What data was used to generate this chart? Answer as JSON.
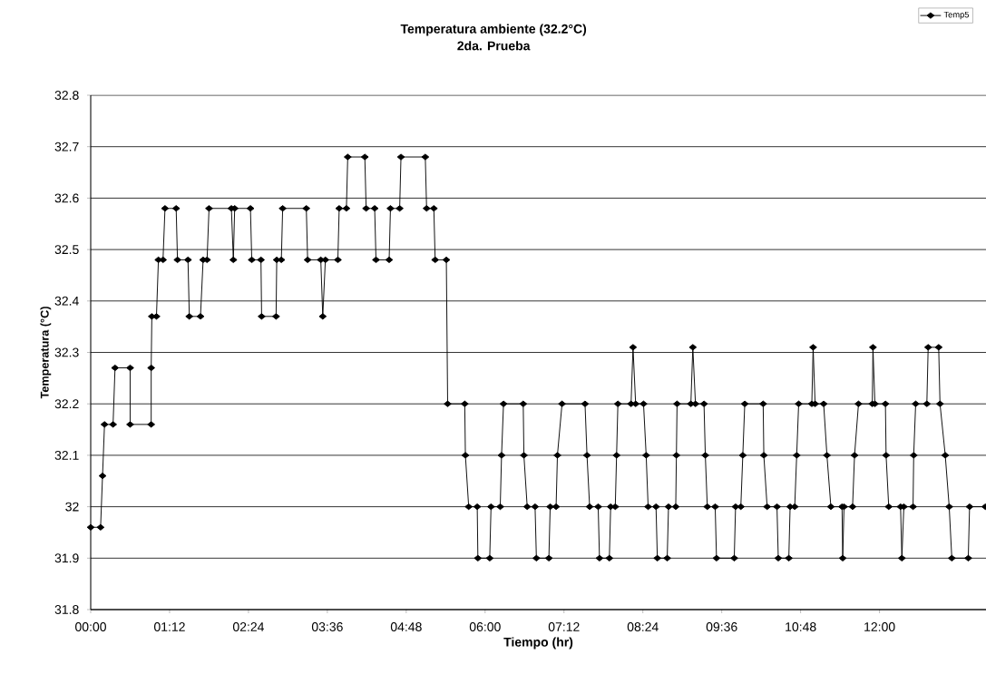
{
  "chart_data": {
    "type": "line",
    "title": "Temperatura ambiente (32.2°C)",
    "subtitle": "2da. Prueba",
    "xlabel": "Tiempo (hr)",
    "ylabel": "Temperatura (°C)",
    "xlim": [
      0,
      13.62
    ],
    "ylim": [
      31.8,
      32.8
    ],
    "xticks": [
      {
        "value": 0,
        "label": "00:00"
      },
      {
        "value": 1.2,
        "label": "01:12"
      },
      {
        "value": 2.4,
        "label": "02:24"
      },
      {
        "value": 3.6,
        "label": "03:36"
      },
      {
        "value": 4.8,
        "label": "04:48"
      },
      {
        "value": 6,
        "label": "06:00"
      },
      {
        "value": 7.2,
        "label": "07:12"
      },
      {
        "value": 8.4,
        "label": "08:24"
      },
      {
        "value": 9.6,
        "label": "09:36"
      },
      {
        "value": 10.8,
        "label": "10:48"
      },
      {
        "value": 12,
        "label": "12:00"
      }
    ],
    "yticks": [
      31.8,
      31.9,
      32,
      32.1,
      32.2,
      32.3,
      32.4,
      32.5,
      32.6,
      32.7,
      32.8
    ],
    "grid": "y",
    "legend": "top right",
    "marker": "diamond",
    "line_style": "solid",
    "series": [
      {
        "name": "Temp5",
        "color": "#000000",
        "x": [
          0,
          0.15,
          0.18,
          0.21,
          0.34,
          0.37,
          0.6,
          0.6,
          0.92,
          0.92,
          0.93,
          1.0,
          1.03,
          1.1,
          1.13,
          1.3,
          1.32,
          1.48,
          1.5,
          1.67,
          1.71,
          1.77,
          1.8,
          2.14,
          2.17,
          2.19,
          2.43,
          2.45,
          2.59,
          2.6,
          2.82,
          2.83,
          2.9,
          2.92,
          3.28,
          3.3,
          3.5,
          3.53,
          3.57,
          3.76,
          3.78,
          3.89,
          3.91,
          4.17,
          4.19,
          4.32,
          4.34,
          4.54,
          4.56,
          4.7,
          4.72,
          5.09,
          5.11,
          5.22,
          5.24,
          5.41,
          5.43,
          5.69,
          5.7,
          5.75,
          5.88,
          5.89,
          6.07,
          6.09,
          6.23,
          6.25,
          6.28,
          6.58,
          6.59,
          6.64,
          6.76,
          6.78,
          6.97,
          6.99,
          7.08,
          7.1,
          7.17,
          7.52,
          7.55,
          7.59,
          7.72,
          7.74,
          7.89,
          7.91,
          7.98,
          8.0,
          8.02,
          8.22,
          8.25,
          8.29,
          8.41,
          8.45,
          8.48,
          8.6,
          8.62,
          8.77,
          8.79,
          8.9,
          8.91,
          8.92,
          9.13,
          9.16,
          9.2,
          9.33,
          9.35,
          9.38,
          9.5,
          9.52,
          9.79,
          9.81,
          9.89,
          9.92,
          9.95,
          10.23,
          10.24,
          10.29,
          10.44,
          10.46,
          10.62,
          10.64,
          10.71,
          10.74,
          10.77,
          10.97,
          10.99,
          11.02,
          11.15,
          11.2,
          11.26,
          11.43,
          11.44,
          11.46,
          11.59,
          11.62,
          11.68,
          11.89,
          11.9,
          11.93,
          12.09,
          12.1,
          12.14,
          12.32,
          12.34,
          12.37,
          12.51,
          12.52,
          12.55,
          12.72,
          12.74,
          12.9,
          12.92,
          13.0,
          13.06,
          13.1,
          13.35,
          13.37,
          13.61
        ],
        "values": [
          31.96,
          31.96,
          32.06,
          32.16,
          32.16,
          32.27,
          32.27,
          32.16,
          32.16,
          32.27,
          32.37,
          32.37,
          32.48,
          32.48,
          32.58,
          32.58,
          32.48,
          32.48,
          32.37,
          32.37,
          32.48,
          32.48,
          32.58,
          32.58,
          32.48,
          32.58,
          32.58,
          32.48,
          32.48,
          32.37,
          32.37,
          32.48,
          32.48,
          32.58,
          32.58,
          32.48,
          32.48,
          32.37,
          32.48,
          32.48,
          32.58,
          32.58,
          32.68,
          32.68,
          32.58,
          32.58,
          32.48,
          32.48,
          32.58,
          32.58,
          32.68,
          32.68,
          32.58,
          32.58,
          32.48,
          32.48,
          32.2,
          32.2,
          32.1,
          32.0,
          32.0,
          31.9,
          31.9,
          32.0,
          32.0,
          32.1,
          32.2,
          32.2,
          32.1,
          32.0,
          32.0,
          31.9,
          31.9,
          32.0,
          32.0,
          32.1,
          32.2,
          32.2,
          32.1,
          32.0,
          32.0,
          31.9,
          31.9,
          32.0,
          32.0,
          32.1,
          32.2,
          32.2,
          32.31,
          32.2,
          32.2,
          32.1,
          32.0,
          32.0,
          31.9,
          31.9,
          32.0,
          32.0,
          32.1,
          32.2,
          32.2,
          32.31,
          32.2,
          32.2,
          32.1,
          32.0,
          32.0,
          31.9,
          31.9,
          32.0,
          32.0,
          32.1,
          32.2,
          32.2,
          32.1,
          32.0,
          32.0,
          31.9,
          31.9,
          32.0,
          32.0,
          32.1,
          32.2,
          32.2,
          32.31,
          32.2,
          32.2,
          32.1,
          32.0,
          32.0,
          31.9,
          32.0,
          32.0,
          32.1,
          32.2,
          32.2,
          32.31,
          32.2,
          32.2,
          32.1,
          32.0,
          32.0,
          31.9,
          32.0,
          32.0,
          32.1,
          32.2,
          32.2,
          32.31,
          32.31,
          32.2,
          32.1,
          32.0,
          31.9,
          31.9,
          32.0,
          32.0
        ]
      }
    ]
  }
}
